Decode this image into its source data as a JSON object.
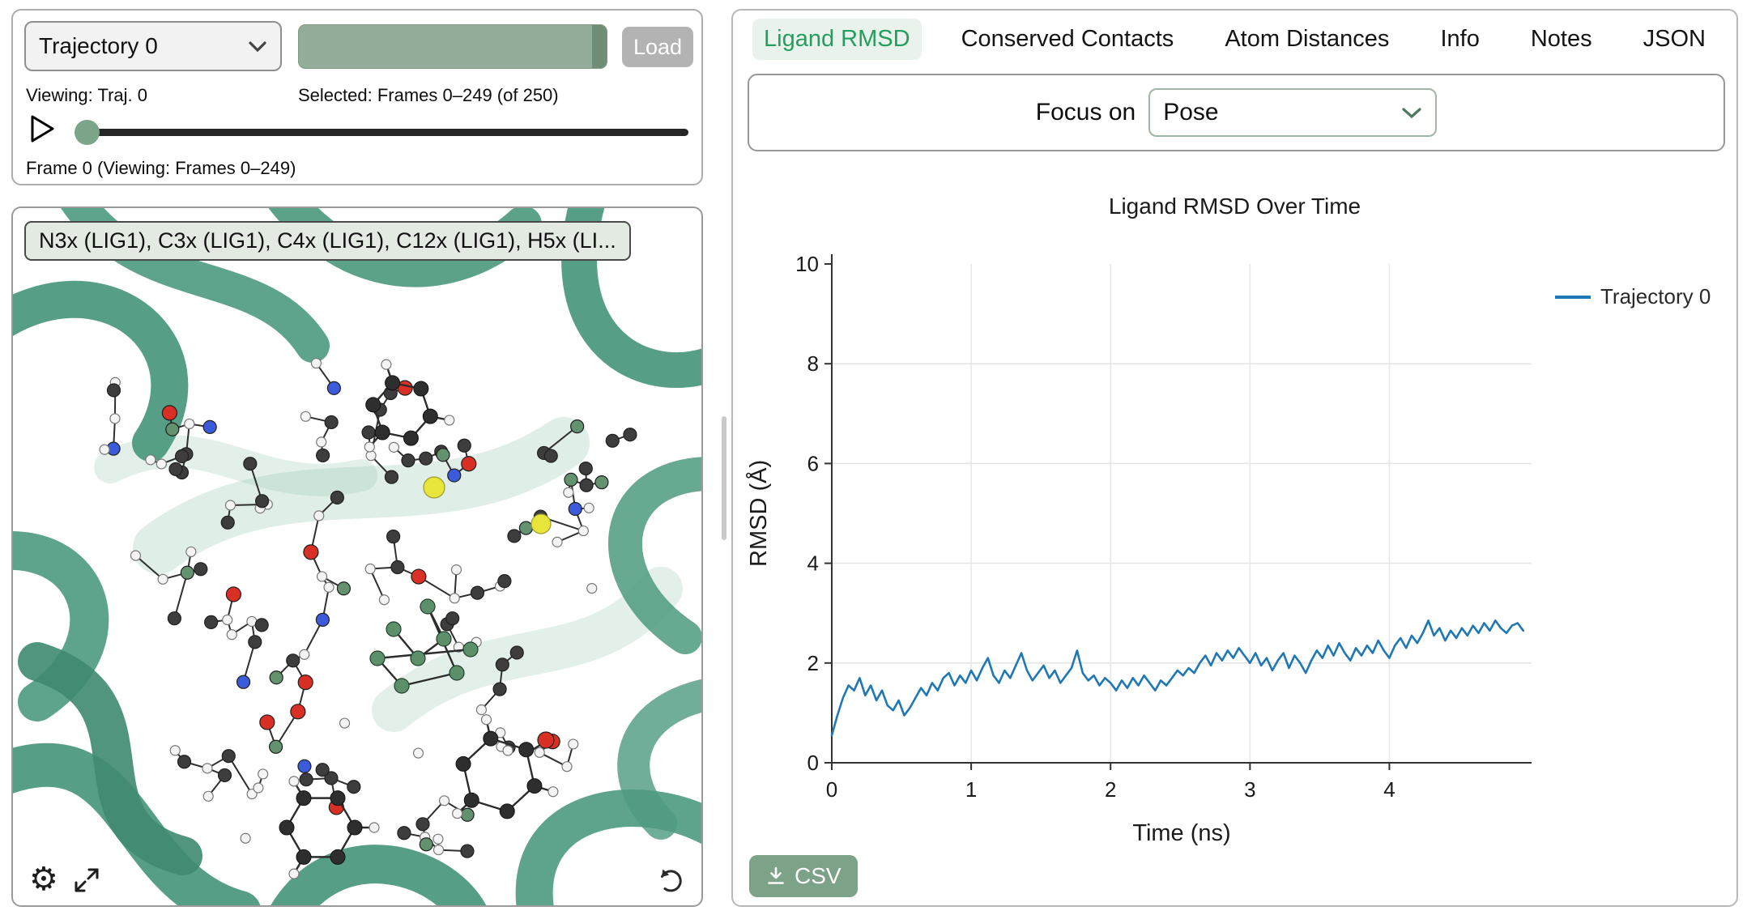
{
  "controls": {
    "trajectory_select": "Trajectory 0",
    "progress_fill_percent": 100,
    "load_button": "Load",
    "viewing_label": "Viewing: Traj. 0",
    "selected_label": "Selected: Frames 0–249 (of 250)",
    "frame_label": "Frame 0 (Viewing: Frames 0–249)",
    "slider": {
      "value": 0,
      "min": 0,
      "max": 249
    }
  },
  "viewer": {
    "selection_label": "N3x (LIG1), C3x (LIG1), C4x (LIG1), C12x (LIG1), H5x (LI..."
  },
  "tabs": [
    {
      "label": "Ligand RMSD",
      "active": true
    },
    {
      "label": "Conserved Contacts",
      "active": false
    },
    {
      "label": "Atom Distances",
      "active": false
    },
    {
      "label": "Info",
      "active": false
    },
    {
      "label": "Notes",
      "active": false
    },
    {
      "label": "JSON",
      "active": false
    }
  ],
  "focus": {
    "label": "Focus on",
    "value": "Pose"
  },
  "chart_data": {
    "type": "line",
    "title": "Ligand RMSD Over Time",
    "xlabel": "Time (ns)",
    "ylabel": "RMSD (Å)",
    "xlim": [
      0,
      5.02
    ],
    "ylim": [
      0,
      10
    ],
    "xticks": [
      0,
      1,
      2,
      3,
      4
    ],
    "yticks": [
      0,
      2,
      4,
      6,
      8,
      10
    ],
    "grid": true,
    "legend_position": "right",
    "series": [
      {
        "name": "Trajectory 0",
        "color": "#1f77b4",
        "t0": 0,
        "dt": 0.04,
        "values": [
          0.55,
          0.95,
          1.3,
          1.55,
          1.45,
          1.7,
          1.35,
          1.55,
          1.25,
          1.45,
          1.15,
          1.05,
          1.25,
          0.95,
          1.1,
          1.3,
          1.5,
          1.35,
          1.6,
          1.45,
          1.7,
          1.8,
          1.55,
          1.75,
          1.6,
          1.85,
          1.65,
          1.9,
          2.1,
          1.75,
          1.6,
          1.85,
          1.7,
          1.95,
          2.2,
          1.85,
          1.65,
          1.8,
          1.95,
          1.7,
          1.85,
          1.6,
          1.75,
          1.9,
          2.25,
          1.8,
          1.65,
          1.75,
          1.55,
          1.7,
          1.6,
          1.45,
          1.65,
          1.5,
          1.7,
          1.55,
          1.75,
          1.6,
          1.45,
          1.65,
          1.55,
          1.7,
          1.85,
          1.75,
          1.9,
          1.8,
          2.0,
          2.15,
          1.95,
          2.2,
          2.05,
          2.25,
          2.1,
          2.3,
          2.15,
          2.0,
          2.2,
          1.95,
          2.1,
          1.85,
          2.05,
          2.2,
          1.9,
          2.15,
          2.0,
          1.8,
          2.05,
          2.25,
          2.1,
          2.35,
          2.15,
          2.4,
          2.2,
          2.05,
          2.3,
          2.15,
          2.35,
          2.2,
          2.45,
          2.25,
          2.1,
          2.35,
          2.5,
          2.3,
          2.55,
          2.4,
          2.6,
          2.85,
          2.55,
          2.7,
          2.45,
          2.65,
          2.5,
          2.7,
          2.55,
          2.75,
          2.6,
          2.8,
          2.65,
          2.85,
          2.7,
          2.6,
          2.75,
          2.8,
          2.65
        ]
      }
    ]
  },
  "export": {
    "csv_button": "CSV"
  },
  "colors": {
    "accent_sage": "#7ca287",
    "active_tab_green": "#259d60",
    "line_blue": "#1f77b4",
    "ribbon_green": "#4d9a7f"
  }
}
